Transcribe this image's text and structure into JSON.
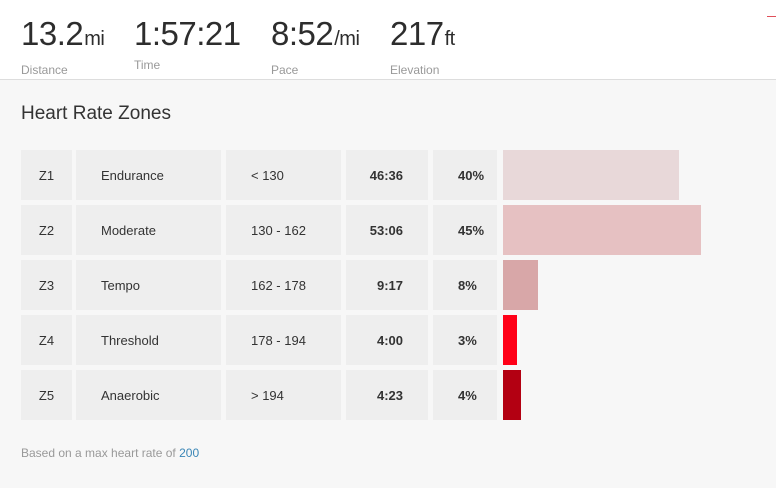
{
  "stats": [
    {
      "value": "13.2",
      "unit": "mi",
      "label": "Distance"
    },
    {
      "value": "1:57:21",
      "unit": "",
      "label": "Time"
    },
    {
      "value": "8:52",
      "unit": "/mi",
      "label": "Pace"
    },
    {
      "value": "217",
      "unit": "ft",
      "label": "Elevation"
    }
  ],
  "heart_rate": {
    "title": "Heart Rate Zones",
    "zones": [
      {
        "zone": "Z1",
        "name": "Endurance",
        "range": "< 130",
        "time": "46:36",
        "percent": "40%",
        "share": 40,
        "color": "#e8d8d9"
      },
      {
        "zone": "Z2",
        "name": "Moderate",
        "range": "130 - 162",
        "time": "53:06",
        "percent": "45%",
        "share": 45,
        "color": "#e6c1c2"
      },
      {
        "zone": "Z3",
        "name": "Tempo",
        "range": "162 - 178",
        "time": "9:17",
        "percent": "8%",
        "share": 8,
        "color": "#d8a7a8"
      },
      {
        "zone": "Z4",
        "name": "Threshold",
        "range": "178 - 194",
        "time": "4:00",
        "percent": "3%",
        "share": 3,
        "color": "#ff0017"
      },
      {
        "zone": "Z5",
        "name": "Anaerobic",
        "range": "> 194",
        "time": "4:23",
        "percent": "4%",
        "share": 4,
        "color": "#b30012"
      }
    ],
    "footnote_prefix": "Based on a max heart rate of",
    "max_heart_rate": "200"
  }
}
